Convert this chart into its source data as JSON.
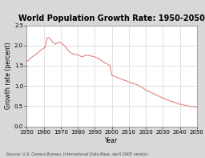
{
  "title": "World Population Growth Rate: 1950-2050",
  "xlabel": "Year",
  "ylabel": "Growth rate (percent)",
  "source_text": "Source: U.S. Census Bureau, International Data Base, April 2005 version.",
  "line_color": "#e08080",
  "background_color": "#d8d8d8",
  "plot_bg_color": "#ffffff",
  "grid_color": "#cccccc",
  "ylim": [
    0.0,
    2.5
  ],
  "xlim": [
    1950,
    2050
  ],
  "yticks": [
    0.0,
    0.5,
    1.0,
    1.5,
    2.0,
    2.5
  ],
  "xticks": [
    1950,
    1960,
    1970,
    1980,
    1990,
    2000,
    2010,
    2020,
    2030,
    2040,
    2050
  ],
  "years": [
    1950,
    1951,
    1952,
    1953,
    1954,
    1955,
    1956,
    1957,
    1958,
    1959,
    1960,
    1961,
    1962,
    1963,
    1964,
    1965,
    1966,
    1967,
    1968,
    1969,
    1970,
    1971,
    1972,
    1973,
    1974,
    1975,
    1976,
    1977,
    1978,
    1979,
    1980,
    1981,
    1982,
    1983,
    1984,
    1985,
    1986,
    1987,
    1988,
    1989,
    1990,
    1991,
    1992,
    1993,
    1994,
    1995,
    1996,
    1997,
    1998,
    1999,
    2000,
    2001,
    2002,
    2003,
    2004,
    2005,
    2006,
    2007,
    2008,
    2009,
    2010,
    2011,
    2012,
    2013,
    2014,
    2015,
    2016,
    2017,
    2018,
    2019,
    2020,
    2021,
    2022,
    2023,
    2024,
    2025,
    2026,
    2027,
    2028,
    2029,
    2030,
    2031,
    2032,
    2033,
    2034,
    2035,
    2036,
    2037,
    2038,
    2039,
    2040,
    2041,
    2042,
    2043,
    2044,
    2045,
    2046,
    2047,
    2048,
    2049,
    2050
  ],
  "rates": [
    1.6,
    1.63,
    1.67,
    1.71,
    1.74,
    1.77,
    1.8,
    1.84,
    1.87,
    1.9,
    1.93,
    1.97,
    2.19,
    2.19,
    2.16,
    2.1,
    2.06,
    2.03,
    2.07,
    2.08,
    2.07,
    2.04,
    2.0,
    1.96,
    1.9,
    1.85,
    1.82,
    1.8,
    1.78,
    1.78,
    1.77,
    1.75,
    1.73,
    1.72,
    1.75,
    1.76,
    1.76,
    1.75,
    1.74,
    1.73,
    1.72,
    1.7,
    1.68,
    1.66,
    1.63,
    1.6,
    1.57,
    1.55,
    1.53,
    1.5,
    1.27,
    1.25,
    1.23,
    1.21,
    1.2,
    1.18,
    1.17,
    1.15,
    1.13,
    1.12,
    1.1,
    1.08,
    1.07,
    1.06,
    1.04,
    1.03,
    1.0,
    0.98,
    0.96,
    0.93,
    0.9,
    0.88,
    0.86,
    0.84,
    0.82,
    0.8,
    0.78,
    0.76,
    0.74,
    0.72,
    0.7,
    0.68,
    0.67,
    0.65,
    0.63,
    0.62,
    0.61,
    0.59,
    0.58,
    0.56,
    0.55,
    0.54,
    0.53,
    0.52,
    0.51,
    0.5,
    0.5,
    0.49,
    0.49,
    0.48,
    0.47
  ],
  "title_fontsize": 7.0,
  "axis_label_fontsize": 5.5,
  "tick_fontsize": 5.0,
  "source_fontsize": 3.5
}
